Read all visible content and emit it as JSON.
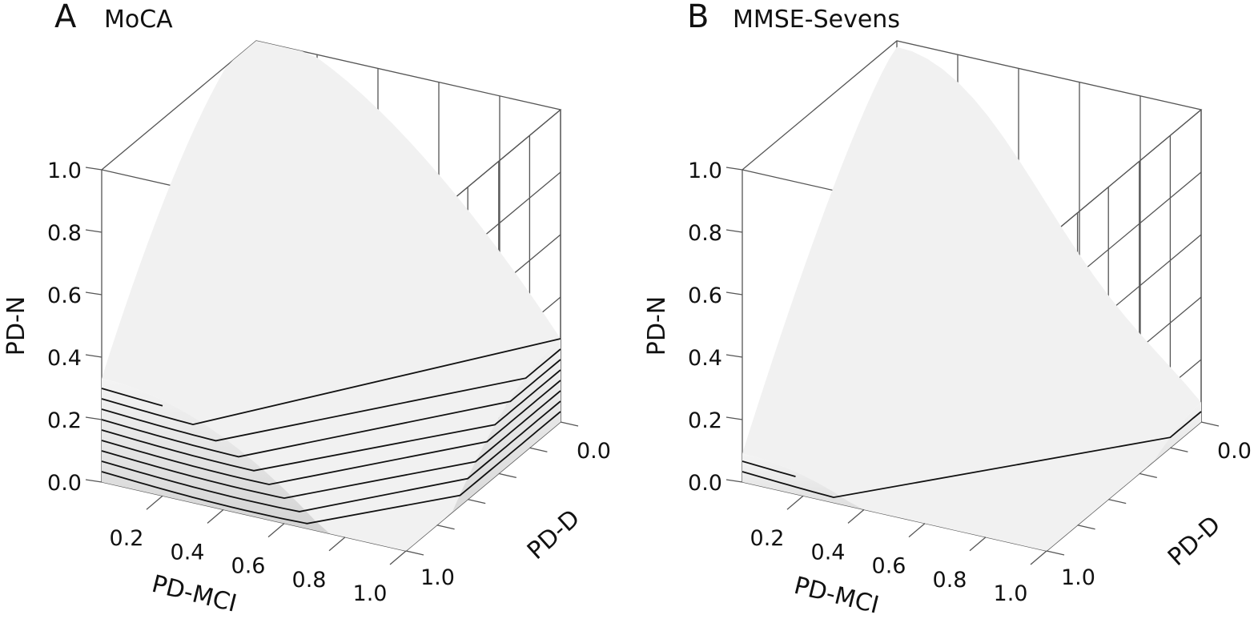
{
  "chart_data": [
    {
      "type": "surface3d-contour",
      "panel_letter": "A",
      "title": "MoCA",
      "axes": {
        "x": {
          "label": "PD-MCI",
          "ticks": [
            "0.2",
            "0.4",
            "0.6",
            "0.8",
            "1.0"
          ],
          "range": [
            0,
            1
          ]
        },
        "y": {
          "label": "PD-D",
          "ticks": [
            "0.0",
            "1.0"
          ],
          "range": [
            0,
            1
          ]
        },
        "z": {
          "label": "PD-N",
          "ticks": [
            "0.0",
            "0.2",
            "0.4",
            "0.6",
            "0.8",
            "1.0"
          ],
          "range": [
            0,
            1
          ]
        }
      },
      "contour_levels_count": 30,
      "surface_description": "Surface near 1.0 at low PD-MCI/low PD-D, decreasing toward high PD-MCI and high PD-D; bounded region, corner at PD-MCI 1/PD-D 1 truncated",
      "grid": true
    },
    {
      "type": "surface3d-contour",
      "panel_letter": "B",
      "title": "MMSE-Sevens",
      "axes": {
        "x": {
          "label": "PD-MCI",
          "ticks": [
            "0.2",
            "0.4",
            "0.6",
            "0.8",
            "1.0"
          ],
          "range": [
            0,
            1
          ]
        },
        "y": {
          "label": "PD-D",
          "ticks": [
            "0.0",
            "1.0"
          ],
          "range": [
            0,
            1
          ]
        },
        "z": {
          "label": "PD-N",
          "ticks": [
            "0.0",
            "0.2",
            "0.4",
            "0.6",
            "0.8",
            "1.0"
          ],
          "range": [
            0,
            1
          ]
        }
      },
      "contour_levels_count": 30,
      "surface_description": "Surface reaching ~0.8 at low PD-MCI front edge, ~1.0 at back; lower and more irregular than MoCA",
      "grid": true
    }
  ]
}
